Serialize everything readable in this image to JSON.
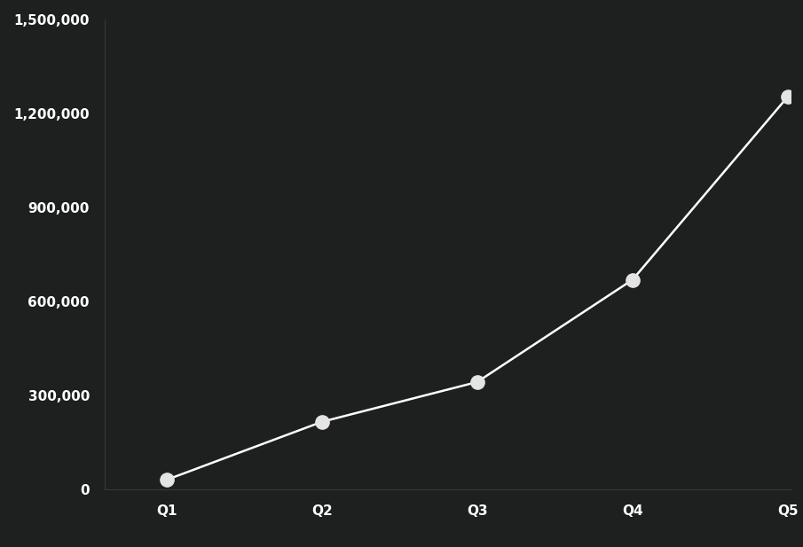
{
  "chart_data": {
    "type": "line",
    "categories": [
      "Q1",
      "Q2",
      "Q3",
      "Q4",
      "Q5"
    ],
    "values": [
      31000,
      216000,
      343000,
      669000,
      1253000
    ],
    "color": "#ffffff",
    "marker": "o",
    "ylim": [
      0,
      1500000
    ],
    "yticks": [
      0,
      {
        "value": 300000,
        "label": "300,000"
      },
      {
        "value": 600000,
        "label": "600,000"
      },
      {
        "value": 900000,
        "label": "900,000"
      },
      {
        "value": 1200000,
        "label": "1,200,000"
      },
      {
        "value": 1500000,
        "label": "1,500,000"
      }
    ],
    "grid": false
  }
}
